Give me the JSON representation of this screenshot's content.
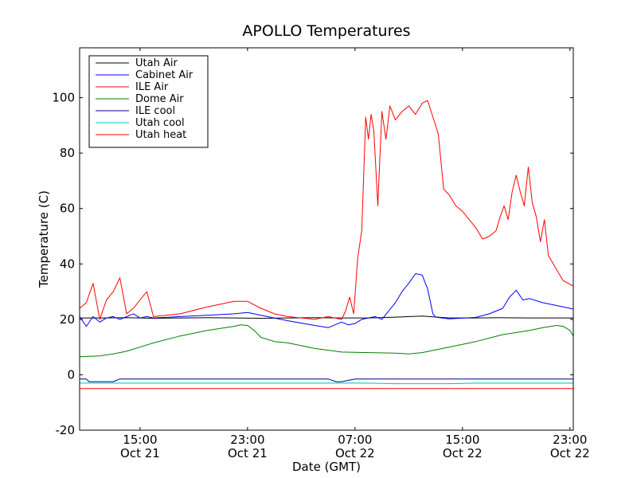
{
  "chart_data": {
    "type": "line",
    "title": "APOLLO Temperatures",
    "xlabel": "Date (GMT)",
    "ylabel": "Temperature (C)",
    "xlim": [
      10.5,
      47.25
    ],
    "ylim": [
      -20,
      118
    ],
    "x_unit": "hours since Oct 21 00:00 GMT",
    "xticks": [
      {
        "x": 15,
        "line1": "15:00",
        "line2": "Oct 21"
      },
      {
        "x": 23,
        "line1": "23:00",
        "line2": "Oct 21"
      },
      {
        "x": 31,
        "line1": "07:00",
        "line2": "Oct 22"
      },
      {
        "x": 39,
        "line1": "15:00",
        "line2": "Oct 22"
      },
      {
        "x": 47,
        "line1": "23:00",
        "line2": "Oct 22"
      }
    ],
    "yticks": [
      -20,
      0,
      20,
      40,
      60,
      80,
      100
    ],
    "legend_position": "top-left",
    "series": [
      {
        "name": "Utah Air",
        "color": "#000000",
        "x": [
          10.5,
          12,
          14,
          16,
          18,
          20,
          22,
          24,
          26,
          28,
          30,
          32,
          34,
          36,
          38,
          40,
          42,
          44,
          46,
          47.25
        ],
        "y": [
          20.5,
          20.5,
          20.6,
          20.4,
          20.5,
          20.6,
          20.5,
          20.4,
          20.5,
          20.6,
          20.5,
          20.5,
          20.8,
          21.2,
          20.5,
          20.5,
          20.6,
          20.5,
          20.5,
          20.5
        ]
      },
      {
        "name": "Cabinet Air",
        "color": "#0000ff",
        "x": [
          10.5,
          11,
          11.5,
          12,
          12.5,
          13,
          13.5,
          14,
          14.5,
          15,
          15.5,
          16,
          18,
          20,
          22,
          23,
          24,
          26,
          28,
          29,
          30,
          30.5,
          31,
          31.5,
          32,
          32.5,
          33,
          33.5,
          34,
          34.5,
          35,
          35.5,
          36,
          36.4,
          36.8,
          37,
          38,
          40,
          41,
          42,
          42.5,
          43,
          43.5,
          44,
          45,
          46,
          47,
          47.25
        ],
        "y": [
          21,
          17.5,
          21,
          19,
          20.5,
          21,
          20,
          21,
          22,
          20.5,
          21,
          20.5,
          21,
          21.5,
          22,
          22.5,
          21.5,
          19.5,
          17.8,
          17,
          19,
          18,
          18.5,
          20,
          20.5,
          21,
          20,
          23,
          26,
          30,
          33,
          36.5,
          36,
          31,
          22,
          20.8,
          20.2,
          20.7,
          22,
          24,
          28,
          30.5,
          27,
          27.5,
          26,
          25,
          24,
          23.7
        ]
      },
      {
        "name": "ILE Air",
        "color": "#ff0000",
        "x": [
          10.5,
          11,
          11.5,
          12,
          12.5,
          13,
          13.5,
          14,
          14.5,
          15,
          15.5,
          16,
          18,
          20,
          22,
          23,
          24,
          25,
          26,
          27,
          28,
          29,
          30,
          30.3,
          30.6,
          30.9,
          31.2,
          31.5,
          31.8,
          32,
          32.2,
          32.4,
          32.7,
          33,
          33.3,
          33.6,
          34,
          34.5,
          35,
          35.5,
          36,
          36.4,
          36.8,
          37.2,
          37.6,
          38,
          38.5,
          39,
          39.5,
          40,
          40.5,
          41,
          41.5,
          41.8,
          42.1,
          42.4,
          42.7,
          43,
          43.3,
          43.6,
          43.9,
          44.2,
          44.5,
          44.8,
          45.1,
          45.4,
          46,
          46.5,
          47.25
        ],
        "y": [
          24,
          26,
          33,
          20,
          27,
          30,
          35,
          22,
          24,
          27,
          30,
          21,
          22,
          24.5,
          26.5,
          26.5,
          24,
          22,
          21,
          20.5,
          20,
          21,
          20,
          23,
          28,
          22,
          42,
          52,
          93,
          85,
          94,
          88,
          61,
          95,
          85,
          97,
          92,
          95,
          97,
          94,
          98,
          99,
          93,
          87,
          67,
          65,
          61,
          59,
          56,
          53,
          49,
          50,
          52,
          57,
          61,
          56,
          66,
          72,
          66,
          61,
          75,
          62,
          57,
          48,
          56,
          43,
          38,
          34,
          32
        ]
      },
      {
        "name": "Dome Air",
        "color": "#008000",
        "x": [
          10.5,
          12,
          13,
          14,
          15,
          16,
          18,
          20,
          22,
          22.5,
          23,
          23.5,
          24,
          25,
          26,
          27,
          28,
          30,
          32,
          34,
          35,
          36,
          37,
          38,
          40,
          42,
          44,
          45,
          46,
          46.5,
          47,
          47.25
        ],
        "y": [
          6.5,
          6.8,
          7.5,
          8.5,
          10,
          11.5,
          14,
          16,
          17.5,
          18,
          17.8,
          16,
          13.5,
          12,
          11.5,
          10.5,
          9.5,
          8.2,
          8,
          7.8,
          7.5,
          8,
          9,
          10,
          12,
          14.5,
          16,
          17,
          17.8,
          17.5,
          16,
          14
        ]
      },
      {
        "name": "ILE cool",
        "color": "#000080",
        "x": [
          10.5,
          11,
          11.2,
          12,
          13,
          13.5,
          14,
          15,
          16,
          18,
          20,
          22,
          24,
          26,
          28,
          29,
          29.6,
          30,
          31,
          32,
          34,
          36,
          38,
          40,
          42,
          44,
          46,
          47.25
        ],
        "y": [
          -1.5,
          -1.5,
          -2.5,
          -2.5,
          -2.5,
          -1.5,
          -1.5,
          -1.5,
          -1.5,
          -1.5,
          -1.5,
          -1.5,
          -1.5,
          -1.5,
          -1.5,
          -1.5,
          -2.5,
          -2.5,
          -1.5,
          -1.5,
          -1.5,
          -1.5,
          -1.5,
          -1.5,
          -1.5,
          -1.5,
          -1.5,
          -1.5
        ]
      },
      {
        "name": "Utah cool",
        "color": "#00bfbf",
        "x": [
          10.5,
          12,
          14,
          16,
          18,
          20,
          22,
          24,
          26,
          28,
          30,
          32,
          34,
          36,
          38,
          40,
          42,
          44,
          46,
          47.25
        ],
        "y": [
          -3,
          -3,
          -3,
          -3,
          -3,
          -3,
          -3,
          -3,
          -3,
          -3,
          -3,
          -3,
          -3.2,
          -3.2,
          -3.2,
          -3,
          -3,
          -3,
          -3,
          -3
        ]
      },
      {
        "name": "Utah heat",
        "color": "#ff0000",
        "x": [
          10.5,
          47.25
        ],
        "y": [
          -5,
          -5
        ]
      }
    ]
  }
}
